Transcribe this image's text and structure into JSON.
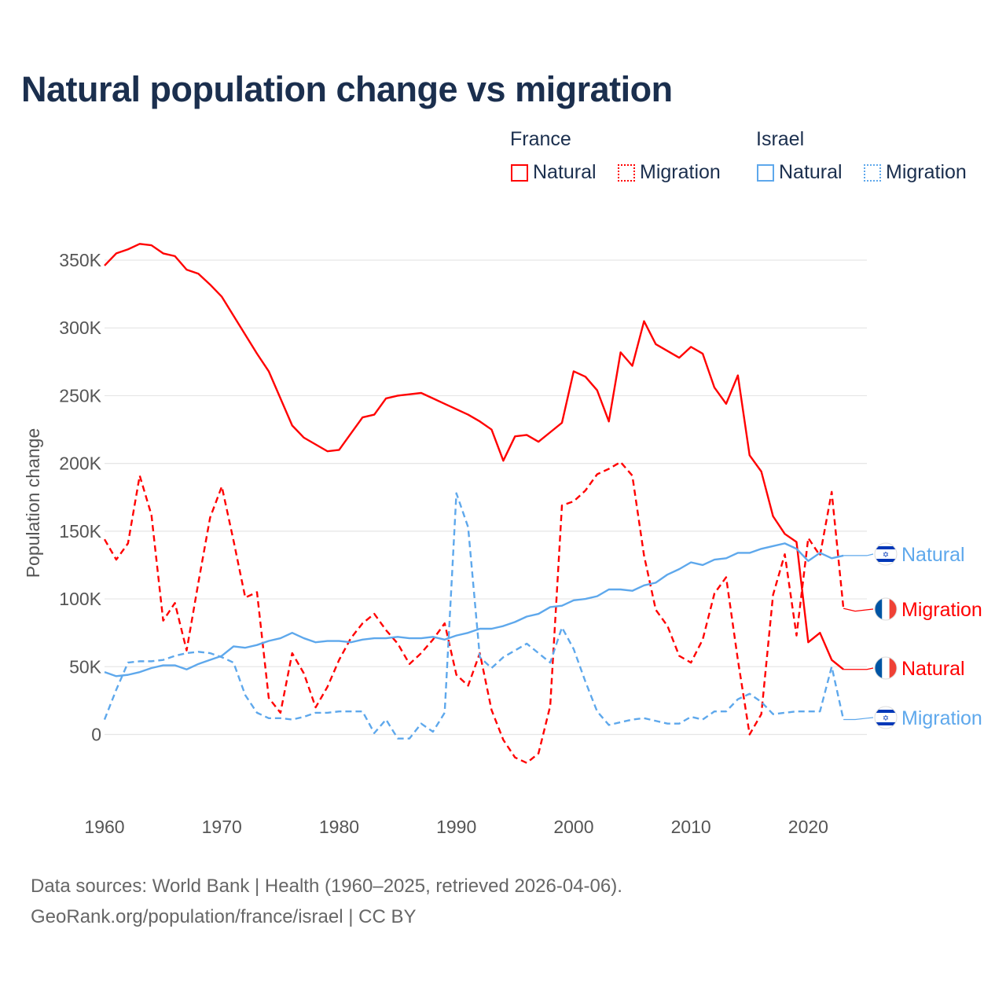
{
  "title": "Natural population change vs migration",
  "legend": {
    "groups": [
      {
        "name": "France",
        "items": [
          {
            "label": "Natural",
            "style": "solid"
          },
          {
            "label": "Migration",
            "style": "dotted"
          }
        ]
      },
      {
        "name": "Israel",
        "items": [
          {
            "label": "Natural",
            "style": "solid"
          },
          {
            "label": "Migration",
            "style": "dotted"
          }
        ]
      }
    ]
  },
  "colors": {
    "France": "#ff0000",
    "Israel": "#5ea8ec"
  },
  "footer": {
    "line1": "Data sources: World Bank | Health (1960–2025, retrieved 2026-04-06).",
    "line2": "GeoRank.org/population/france/israel | CC BY"
  },
  "chart_data": {
    "type": "line",
    "title": "Natural population change vs migration",
    "xlabel": "",
    "ylabel": "Population change",
    "xlim": [
      1960,
      2025
    ],
    "ylim": [
      -38000,
      368000
    ],
    "x_ticks": [
      "1960",
      "1970",
      "1980",
      "1990",
      "2000",
      "2010",
      "2020"
    ],
    "y_ticks": [
      {
        "v": 0,
        "label": "0"
      },
      {
        "v": 50000,
        "label": "50K"
      },
      {
        "v": 100000,
        "label": "100K"
      },
      {
        "v": 150000,
        "label": "150K"
      },
      {
        "v": 200000,
        "label": "200K"
      },
      {
        "v": 250000,
        "label": "250K"
      },
      {
        "v": 300000,
        "label": "300K"
      },
      {
        "v": 350000,
        "label": "350K"
      }
    ],
    "grid": true,
    "x_start": 1960,
    "series": [
      {
        "name": "France Natural",
        "country": "France",
        "kind": "Natural",
        "dashed": false,
        "end_label": "Natural",
        "values_k": [
          346,
          355,
          358,
          362,
          361,
          355,
          353,
          343,
          340,
          332,
          323,
          309,
          295,
          281,
          268,
          248,
          228,
          219,
          214,
          209,
          210,
          222,
          234,
          236,
          248,
          250,
          251,
          252,
          248,
          244,
          240,
          236,
          231,
          225,
          202,
          220,
          221,
          216,
          223,
          230,
          268,
          264,
          254,
          231,
          282,
          272,
          305,
          288,
          283,
          278,
          286,
          281,
          256,
          244,
          265,
          206,
          194,
          161,
          148,
          142,
          68,
          75,
          55,
          48,
          48,
          48
        ]
      },
      {
        "name": "France Migration",
        "country": "France",
        "kind": "Migration",
        "dashed": true,
        "end_label": "Migration",
        "values_k": [
          144,
          129,
          141,
          191,
          162,
          84,
          97,
          62,
          112,
          160,
          183,
          143,
          101,
          105,
          27,
          16,
          60,
          45,
          20,
          35,
          55,
          71,
          82,
          89,
          77,
          67,
          52,
          60,
          70,
          82,
          44,
          36,
          60,
          18,
          -4,
          -17,
          -21,
          -14,
          21,
          169,
          172,
          180,
          192,
          196,
          201,
          191,
          132,
          92,
          80,
          58,
          53,
          70,
          104,
          116,
          55,
          0,
          15,
          103,
          133,
          73,
          145,
          132,
          179,
          93,
          91,
          92
        ]
      },
      {
        "name": "Israel Natural",
        "country": "Israel",
        "kind": "Natural",
        "dashed": false,
        "end_label": "Natural",
        "values_k": [
          46,
          43,
          44,
          46,
          49,
          51,
          51,
          48,
          52,
          55,
          58,
          65,
          64,
          66,
          69,
          71,
          75,
          71,
          68,
          69,
          69,
          68,
          70,
          71,
          71,
          72,
          71,
          71,
          72,
          70,
          73,
          75,
          78,
          78,
          80,
          83,
          87,
          89,
          94,
          95,
          99,
          100,
          102,
          107,
          107,
          106,
          110,
          112,
          118,
          122,
          127,
          125,
          129,
          130,
          134,
          134,
          137,
          139,
          141,
          137,
          128,
          134,
          130,
          132,
          132,
          132
        ]
      },
      {
        "name": "Israel Migration",
        "country": "Israel",
        "kind": "Migration",
        "dashed": true,
        "end_label": "Migration",
        "values_k": [
          11,
          33,
          53,
          54,
          54,
          55,
          58,
          60,
          61,
          60,
          57,
          53,
          29,
          16,
          12,
          12,
          11,
          13,
          16,
          16,
          17,
          17,
          17,
          1,
          11,
          -3,
          -3,
          8,
          2,
          16,
          178,
          153,
          57,
          49,
          57,
          62,
          67,
          60,
          53,
          79,
          63,
          39,
          17,
          7,
          9,
          11,
          12,
          10,
          8,
          8,
          13,
          11,
          17,
          17,
          26,
          30,
          24,
          15,
          16,
          17,
          17,
          17,
          50,
          11,
          11,
          12
        ]
      }
    ]
  }
}
